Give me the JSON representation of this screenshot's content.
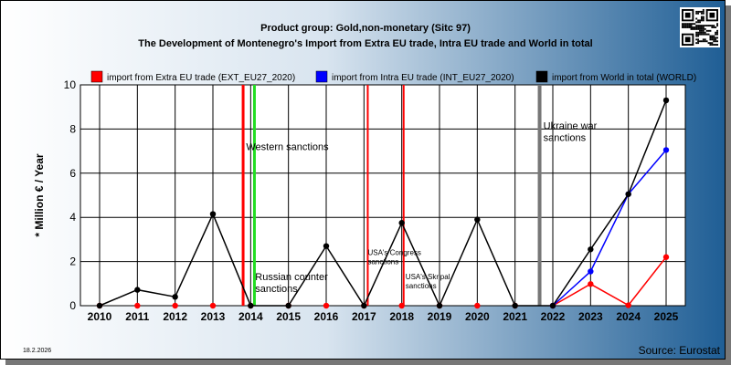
{
  "chart_data": {
    "type": "line",
    "title": "Product group: Gold,non-monetary (Sitc 97)",
    "subtitle": "The Development of Montenegro's Import from Extra EU trade, Intra EU trade and World in total",
    "ylabel": "* Million € / Year",
    "xlabel": "",
    "ylim": [
      0,
      10
    ],
    "yticks": [
      "0",
      "2",
      "4",
      "6",
      "8",
      "10"
    ],
    "grid": true,
    "legend_position": "top",
    "x": [
      "2010",
      "2011",
      "2012",
      "2013",
      "2014",
      "2015",
      "2016",
      "2017",
      "2018",
      "2019",
      "2020",
      "2021",
      "2022",
      "2023",
      "2024",
      "2025"
    ],
    "series": [
      {
        "name": "import from Extra EU trade (EXT_EU27_2020)",
        "color": "#ff0000",
        "values": [
          0,
          0,
          0,
          0,
          0,
          0,
          0,
          0,
          0,
          0,
          0,
          0,
          0,
          0.98,
          0.02,
          2.2
        ],
        "line_from_index": 12
      },
      {
        "name": "import from Intra EU trade (INT_EU27_2020)",
        "color": "#0000ff",
        "values": [
          null,
          null,
          null,
          null,
          null,
          null,
          null,
          null,
          null,
          null,
          null,
          null,
          0,
          1.55,
          5.05,
          7.05
        ],
        "line_from_index": 12
      },
      {
        "name": "import from World in total (WORLD)",
        "color": "#000000",
        "values": [
          0,
          0.72,
          0.4,
          4.15,
          0,
          0,
          2.7,
          0,
          3.75,
          0,
          3.9,
          0,
          0,
          2.55,
          5.05,
          9.3
        ],
        "line_from_index": 0
      }
    ],
    "events": [
      {
        "x": 2013.8,
        "color": "#ff0000",
        "width": 3
      },
      {
        "x": 2014.1,
        "color": "#22dd22",
        "width": 3
      },
      {
        "x": 2017.1,
        "color": "#ff0000",
        "width": 2
      },
      {
        "x": 2018.05,
        "color": "#ff0000",
        "width": 2
      },
      {
        "x": 2021.65,
        "color": "#777777",
        "width": 4
      }
    ],
    "annotations": [
      {
        "lines": [
          "Western sanctions"
        ],
        "x": 2013.88,
        "y": 7.05,
        "size": 11
      },
      {
        "lines": [
          "Russian counter",
          "sanctions"
        ],
        "x": 2014.12,
        "y": 1.15,
        "size": 11
      },
      {
        "lines": [
          "USA's Congress",
          "sanctions"
        ],
        "x": 2017.1,
        "y": 2.3,
        "size": 8
      },
      {
        "lines": [
          "USA's Skripal",
          "sanctions"
        ],
        "x": 2018.1,
        "y": 1.2,
        "size": 8
      },
      {
        "lines": [
          "Ukraine war",
          "sanctions"
        ],
        "x": 2021.75,
        "y": 8.0,
        "size": 11
      }
    ]
  },
  "footer": {
    "date": "18.2.2026",
    "source": "Source: Eurostat"
  },
  "colors": {
    "bg_left": "#ffffff",
    "bg_right": "#1f5e95"
  }
}
